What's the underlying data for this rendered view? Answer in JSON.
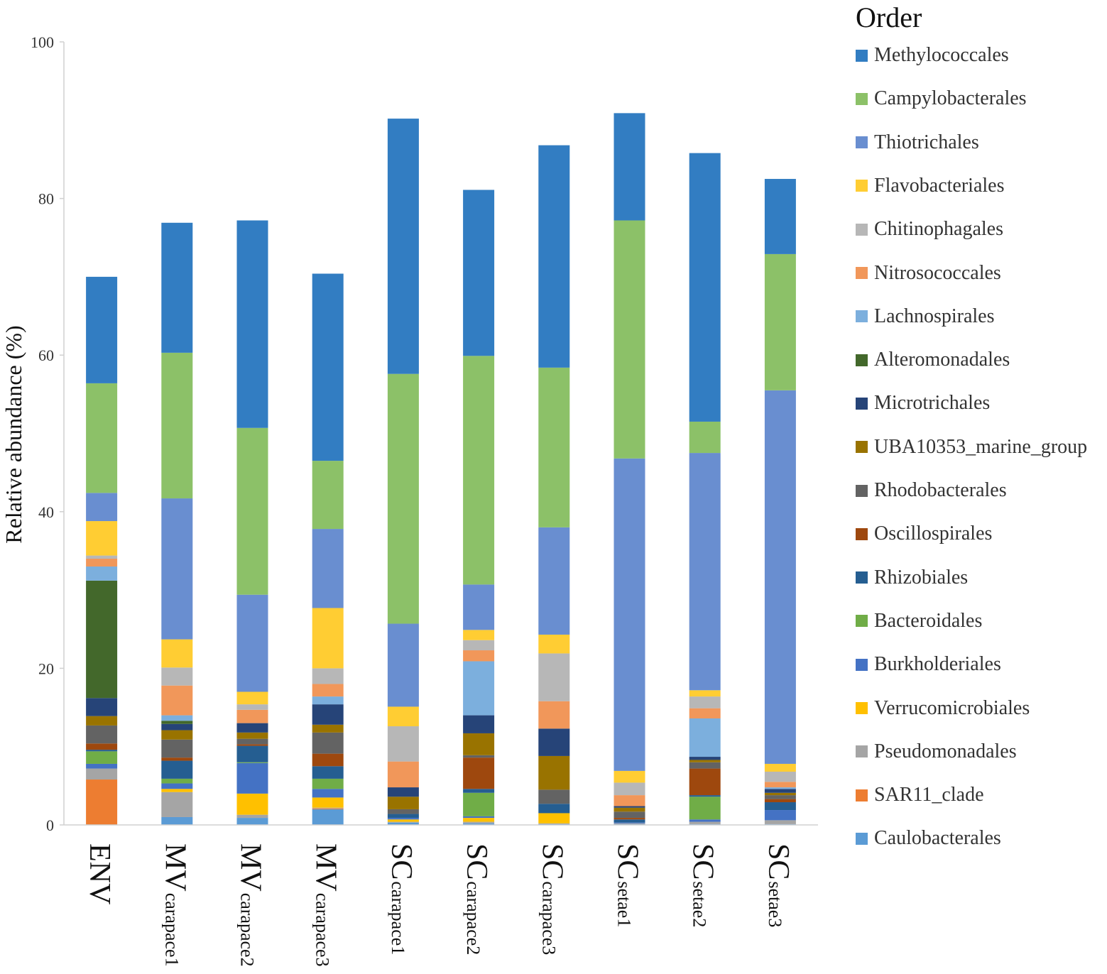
{
  "chart_data": {
    "type": "bar",
    "stacked": true,
    "ylabel": "Relative abundance (%)",
    "ylim": [
      0,
      100
    ],
    "yticks": [
      "0",
      "20",
      "40",
      "60",
      "80",
      "100"
    ],
    "legend_title": "Order",
    "legend_position": "right",
    "grid": false,
    "categories": [
      {
        "main": "ENV",
        "sub": ""
      },
      {
        "main": "MV",
        "sub": "carapace1"
      },
      {
        "main": "MV",
        "sub": "carapace2"
      },
      {
        "main": "MV",
        "sub": "carapace3"
      },
      {
        "main": "SC",
        "sub": "carapace1"
      },
      {
        "main": "SC",
        "sub": "carapace2"
      },
      {
        "main": "SC",
        "sub": "carapace3"
      },
      {
        "main": "SC",
        "sub": "setae1"
      },
      {
        "main": "SC",
        "sub": "setae2"
      },
      {
        "main": "SC",
        "sub": "setae3"
      }
    ],
    "series": [
      {
        "name": "Caulobacterales",
        "color": "#5b9bd5",
        "values": [
          0.0,
          1.0,
          0.9,
          2.0,
          0.3,
          0.2,
          0.1,
          0.1,
          0.1,
          0.1
        ]
      },
      {
        "name": "SAR11_clade",
        "color": "#ed7d31",
        "values": [
          5.8,
          0.0,
          0.0,
          0.1,
          0.0,
          0.0,
          0.0,
          0.0,
          0.0,
          0.0
        ]
      },
      {
        "name": "Pseudomonadales",
        "color": "#a5a5a5",
        "values": [
          1.4,
          3.2,
          0.4,
          0.1,
          0.1,
          0.2,
          0.1,
          0.1,
          0.3,
          0.5
        ]
      },
      {
        "name": "Verrucomicrobiales",
        "color": "#ffc000",
        "values": [
          0.0,
          0.4,
          2.7,
          1.3,
          0.3,
          0.5,
          1.3,
          0.0,
          0.0,
          0.0
        ]
      },
      {
        "name": "Burkholderiales",
        "color": "#4472c4",
        "values": [
          0.6,
          0.7,
          3.9,
          1.1,
          0.2,
          0.2,
          0.0,
          0.1,
          0.3,
          1.3
        ]
      },
      {
        "name": "Bacteroidales",
        "color": "#70ad47",
        "values": [
          1.6,
          0.6,
          0.1,
          1.3,
          0.0,
          3.0,
          0.0,
          0.0,
          2.9,
          0.0
        ]
      },
      {
        "name": "Rhizobiales",
        "color": "#255e91",
        "values": [
          0.2,
          2.3,
          2.1,
          1.6,
          0.5,
          0.5,
          1.2,
          0.4,
          0.2,
          1.0
        ]
      },
      {
        "name": "Oscillospirales",
        "color": "#9e480e",
        "values": [
          0.8,
          0.4,
          0.2,
          1.6,
          0.0,
          4.0,
          0.0,
          0.2,
          3.4,
          0.4
        ]
      },
      {
        "name": "Rhodobacterales",
        "color": "#636363",
        "values": [
          2.3,
          2.3,
          0.7,
          2.7,
          0.6,
          0.3,
          1.8,
          0.8,
          0.8,
          0.5
        ]
      },
      {
        "name": "UBA10353_marine_group",
        "color": "#997300",
        "values": [
          1.2,
          1.2,
          0.8,
          1.0,
          1.6,
          2.8,
          4.3,
          0.5,
          0.3,
          0.3
        ]
      },
      {
        "name": "Microtrichales",
        "color": "#264478",
        "values": [
          2.3,
          0.8,
          1.2,
          2.6,
          1.2,
          2.3,
          3.5,
          0.2,
          0.4,
          0.5
        ]
      },
      {
        "name": "Alteromonadales",
        "color": "#43682b",
        "values": [
          15.0,
          0.4,
          0.0,
          0.0,
          0.0,
          0.0,
          0.0,
          0.0,
          0.0,
          0.0
        ]
      },
      {
        "name": "Lachnospirales",
        "color": "#7cafdd",
        "values": [
          1.8,
          0.7,
          0.0,
          1.0,
          0.0,
          6.9,
          0.0,
          0.0,
          4.9,
          0.2
        ]
      },
      {
        "name": "Nitrosococcales",
        "color": "#f1975a",
        "values": [
          1.0,
          3.8,
          1.7,
          1.6,
          3.3,
          1.4,
          3.5,
          1.4,
          1.3,
          0.7
        ]
      },
      {
        "name": "Chitinophagales",
        "color": "#b7b7b7",
        "values": [
          0.4,
          2.3,
          0.7,
          2.0,
          4.5,
          1.3,
          6.1,
          1.6,
          1.5,
          1.3
        ]
      },
      {
        "name": "Flavobacteriales",
        "color": "#ffcd33",
        "values": [
          4.4,
          3.6,
          1.6,
          7.7,
          2.5,
          1.3,
          2.4,
          1.5,
          0.8,
          1.0
        ]
      },
      {
        "name": "Thiotrichales",
        "color": "#698ed0",
        "values": [
          3.6,
          18.0,
          12.4,
          10.1,
          10.6,
          5.8,
          13.7,
          39.9,
          30.3,
          47.7
        ]
      },
      {
        "name": "Campylobacterales",
        "color": "#8cc168",
        "values": [
          14.0,
          18.6,
          21.3,
          8.7,
          31.9,
          29.2,
          20.4,
          30.4,
          4.0,
          17.4
        ]
      },
      {
        "name": "Methylococcales",
        "color": "#327dc2",
        "values": [
          13.6,
          16.6,
          26.5,
          23.9,
          32.6,
          21.2,
          28.4,
          13.7,
          34.3,
          9.6
        ]
      }
    ]
  }
}
